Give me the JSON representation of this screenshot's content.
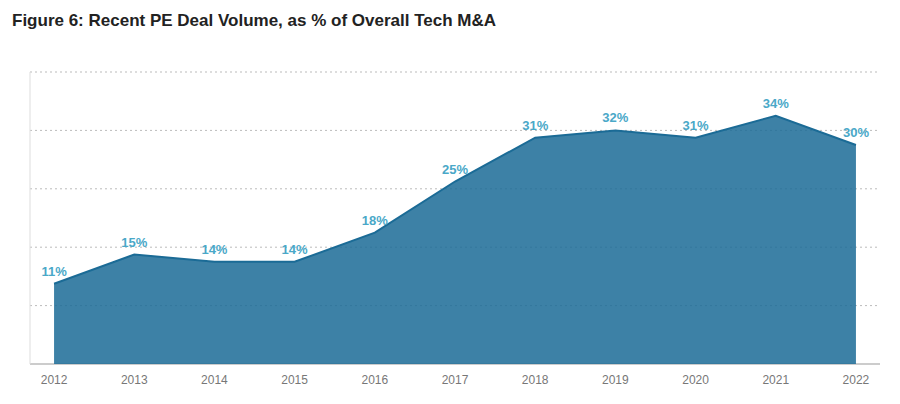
{
  "chart_data": {
    "type": "area",
    "title": "Figure 6: Recent PE Deal Volume, as % of Overall Tech M&A",
    "x": [
      2012,
      2013,
      2014,
      2015,
      2016,
      2017,
      2018,
      2019,
      2020,
      2021,
      2022
    ],
    "values": [
      11,
      15,
      14,
      14,
      18,
      25,
      31,
      32,
      31,
      34,
      30
    ],
    "value_labels": [
      "11%",
      "15%",
      "14%",
      "14%",
      "18%",
      "25%",
      "31%",
      "32%",
      "31%",
      "34%",
      "30%"
    ],
    "color": "#1b6b96",
    "xlim": [
      2011.7,
      2022.3
    ],
    "xticks": [
      2012,
      2013,
      2014,
      2015,
      2016,
      2017,
      2018,
      2019,
      2020,
      2021,
      2022
    ],
    "ylim": [
      0,
      40
    ],
    "yticks": [
      8,
      16,
      24,
      32,
      40
    ],
    "grid": true,
    "data_labels": true,
    "tick_labels": "x"
  }
}
